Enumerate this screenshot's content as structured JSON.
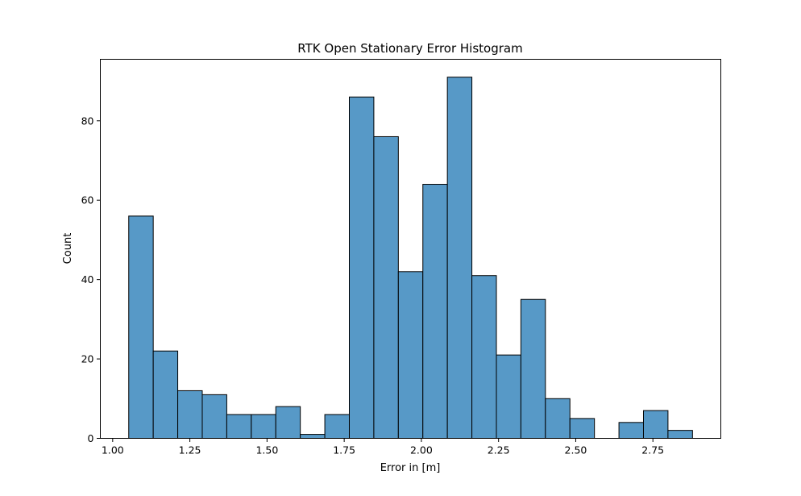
{
  "chart_data": {
    "type": "bar",
    "title": "RTK Open Stationary Error Histogram",
    "xlabel": "Error in [m]",
    "ylabel": "Count",
    "xlim": [
      0.96,
      2.97
    ],
    "ylim": [
      0,
      95.5
    ],
    "xticks": [
      1.0,
      1.25,
      1.5,
      1.75,
      2.0,
      2.25,
      2.5,
      2.75
    ],
    "xtick_labels": [
      "1.00",
      "1.25",
      "1.50",
      "1.75",
      "2.00",
      "2.25",
      "2.50",
      "2.75"
    ],
    "yticks": [
      0,
      20,
      40,
      60,
      80
    ],
    "ytick_labels": [
      "0",
      "20",
      "40",
      "60",
      "80"
    ],
    "grid": false,
    "bin_start": 1.052,
    "bin_width": 0.0794,
    "values": [
      56,
      22,
      12,
      11,
      6,
      6,
      8,
      1,
      6,
      86,
      76,
      42,
      64,
      91,
      41,
      21,
      35,
      10,
      5,
      0,
      4,
      7,
      2
    ],
    "colors": {
      "bar_fill": "#5799c7",
      "bar_edge": "#000000"
    }
  }
}
